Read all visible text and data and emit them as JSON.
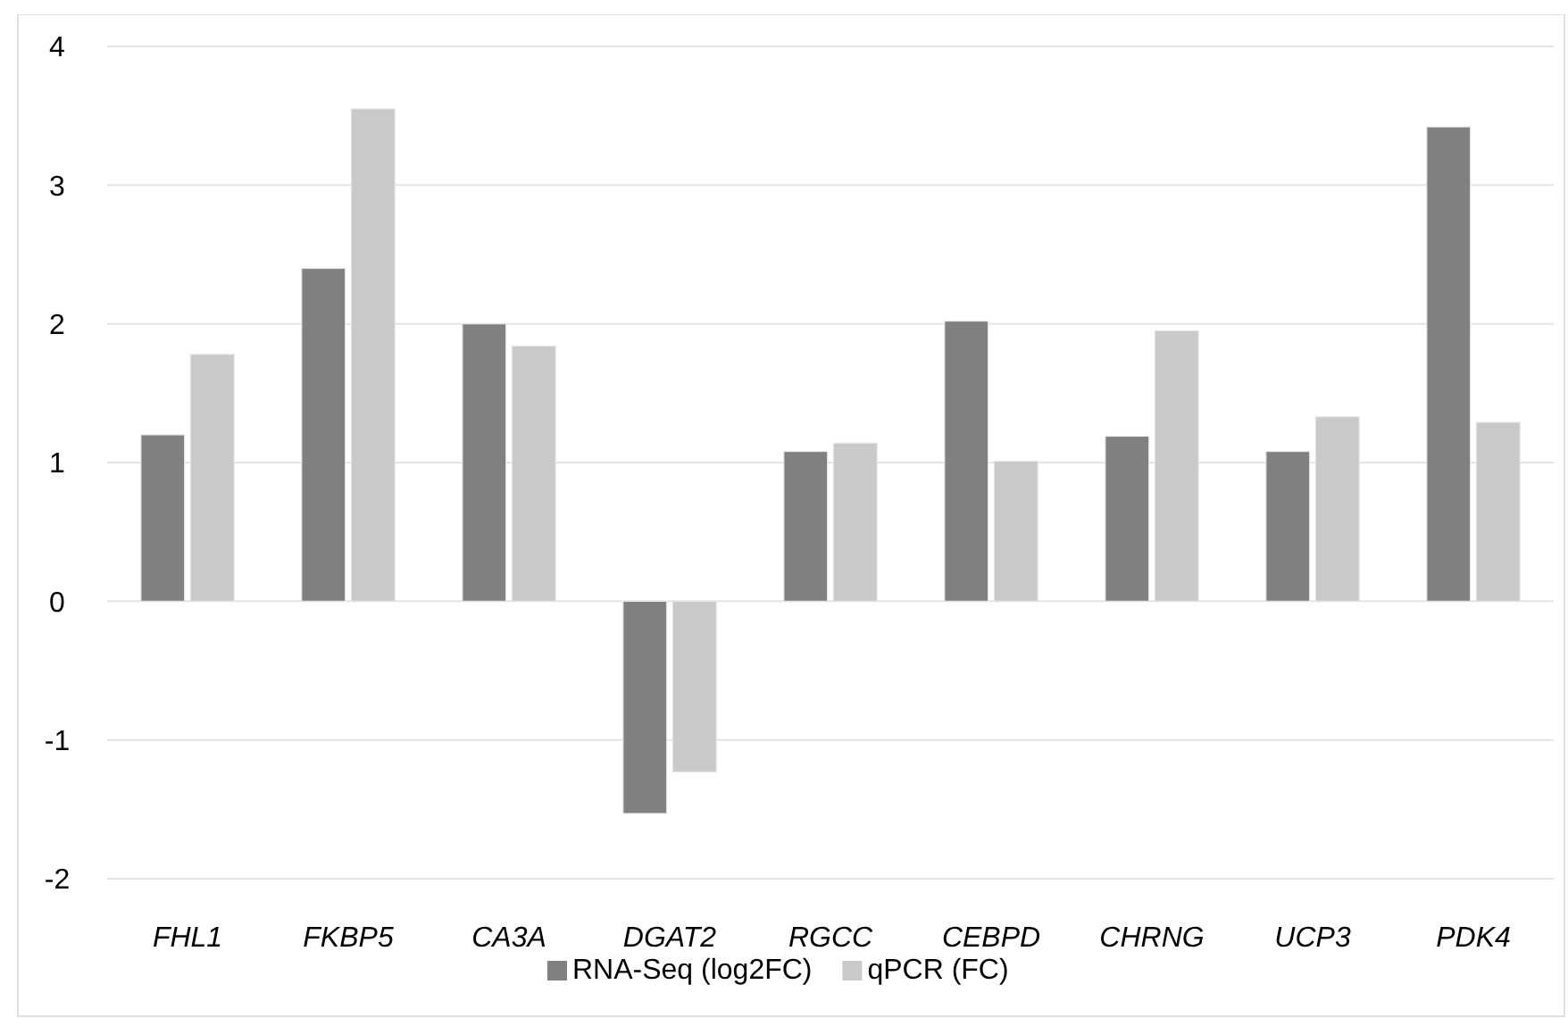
{
  "chart_data": {
    "type": "bar",
    "categories": [
      "FHL1",
      "FKBP5",
      "CA3A",
      "DGAT2",
      "RGCC",
      "CEBPD",
      "CHRNG",
      "UCP3",
      "PDK4"
    ],
    "series": [
      {
        "name": "RNA-Seq (log2FC)",
        "color": "#808080",
        "values": [
          1.2,
          2.4,
          2.0,
          -1.53,
          1.08,
          2.02,
          1.19,
          1.08,
          3.42
        ]
      },
      {
        "name": "qPCR (FC)",
        "color": "#c9c9c9",
        "values": [
          1.78,
          3.55,
          1.84,
          -1.23,
          1.14,
          1.01,
          1.95,
          1.33,
          1.29
        ]
      }
    ],
    "ylim": [
      -2,
      4
    ],
    "yticks": [
      -2,
      -1,
      0,
      1,
      2,
      3,
      4
    ],
    "grid": "y",
    "legend": "bottom"
  }
}
